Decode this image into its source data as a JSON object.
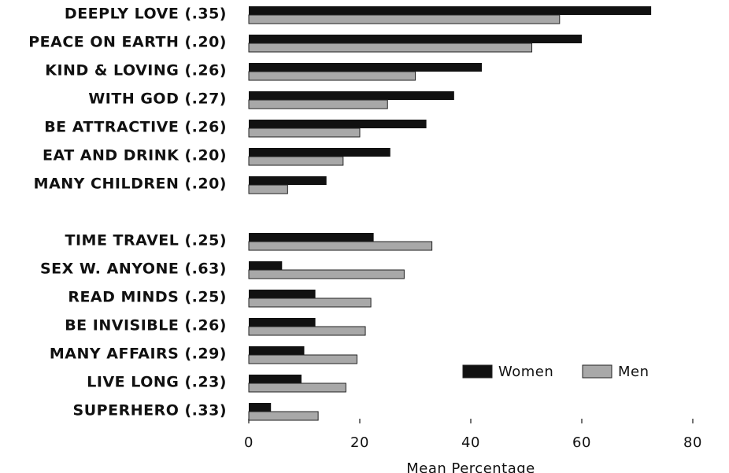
{
  "chart_data": {
    "type": "bar",
    "orientation": "horizontal",
    "x_label": "Mean Percentage",
    "categories": [
      "DEEPLY LOVE (.35)",
      "PEACE ON EARTH (.20)",
      "KIND & LOVING (.26)",
      "WITH GOD (.27)",
      "BE ATTRACTIVE (.26)",
      "EAT AND DRINK (.20)",
      "MANY CHILDREN (.20)",
      null,
      "TIME TRAVEL (.25)",
      "SEX W. ANYONE (.63)",
      "READ MINDS (.25)",
      "BE INVISIBLE (.26)",
      "MANY AFFAIRS (.29)",
      "LIVE LONG (.23)",
      "SUPERHERO (.33)"
    ],
    "series": [
      {
        "name": "Women",
        "color": "#111111",
        "values": [
          72.5,
          60,
          42,
          37,
          32,
          25.5,
          14,
          null,
          22.5,
          6,
          12,
          12,
          10,
          9.5,
          4
        ]
      },
      {
        "name": "Men",
        "color": "#a8a8a8",
        "values": [
          56,
          51,
          30,
          25,
          20,
          17,
          7,
          null,
          33,
          28,
          22,
          21,
          19.5,
          17.5,
          12.5
        ]
      }
    ],
    "xlim": [
      0,
      80
    ],
    "xticks": [
      0,
      20,
      40,
      60,
      80
    ],
    "grid": false,
    "legend": "lower right"
  }
}
